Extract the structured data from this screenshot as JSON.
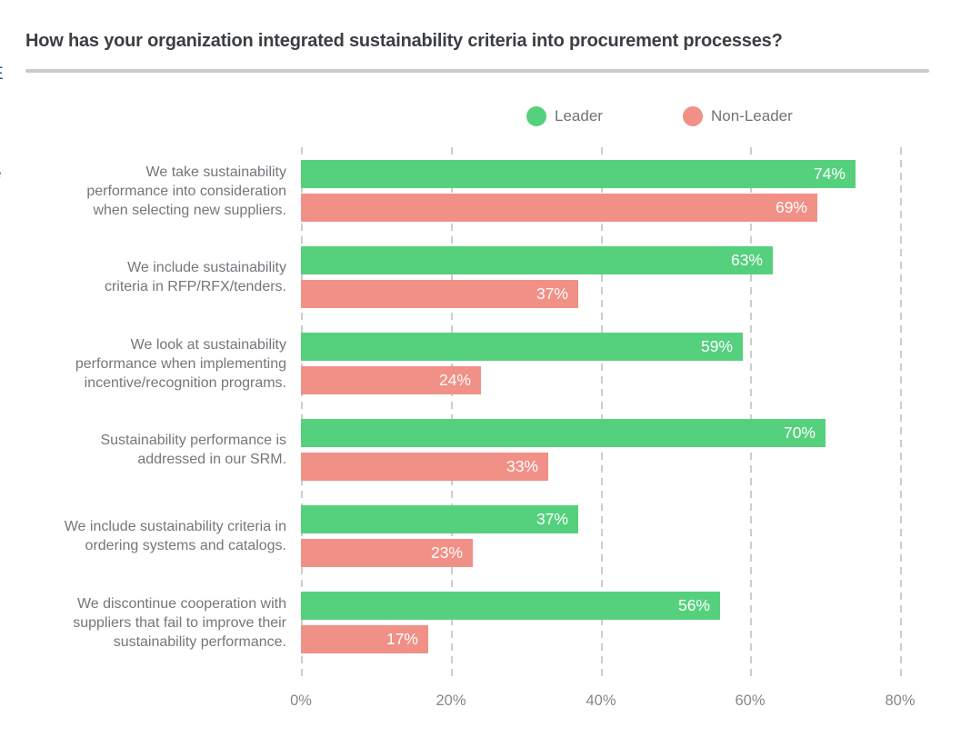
{
  "page": {
    "title": "How has your organization integrated sustainability criteria into procurement processes?",
    "edge_artifacts": {
      "top_fragment": "E",
      "bottom_fragment": "e"
    }
  },
  "colors": {
    "leader": "#55d17e",
    "non_leader": "#f19086",
    "title_text": "#3b3e42",
    "category_text": "#73777c",
    "tick_text": "#84888c",
    "gridline": "#cbcdcf",
    "divider": "#c9cacb",
    "value_label_text": "#ffffff"
  },
  "legend": [
    {
      "label": "Leader",
      "color": "#55d17e"
    },
    {
      "label": "Non-Leader",
      "color": "#f19086"
    }
  ],
  "chart_data": {
    "type": "bar",
    "orientation": "horizontal",
    "title": "How has your organization integrated sustainability criteria into procurement processes?",
    "categories": [
      "We take sustainability\nperformance into consideration\nwhen selecting new suppliers.",
      "We include sustainability\ncriteria in RFP/RFX/tenders.",
      "We look at sustainability\nperformance when implementing\nincentive/recognition programs.",
      "Sustainability performance is\naddressed in our SRM.",
      "We include sustainability criteria in\nordering systems and catalogs.",
      "We discontinue cooperation with\nsuppliers that fail to improve their\nsustainability performance."
    ],
    "series": [
      {
        "name": "Leader",
        "color": "#55d17e",
        "values": [
          74,
          63,
          59,
          70,
          37,
          56
        ]
      },
      {
        "name": "Non-Leader",
        "color": "#f19086",
        "values": [
          69,
          37,
          24,
          33,
          23,
          17
        ]
      }
    ],
    "value_suffix": "%",
    "x_ticks": [
      {
        "label": "0%",
        "value": 0
      },
      {
        "label": "20%",
        "value": 20
      },
      {
        "label": "40%",
        "value": 40
      },
      {
        "label": "60%",
        "value": 60
      },
      {
        "label": "80%",
        "value": 80
      }
    ],
    "xlim": [
      0,
      80
    ],
    "grid": "dashed-vertical",
    "legend_position": "top",
    "value_labels": "inside-end"
  }
}
